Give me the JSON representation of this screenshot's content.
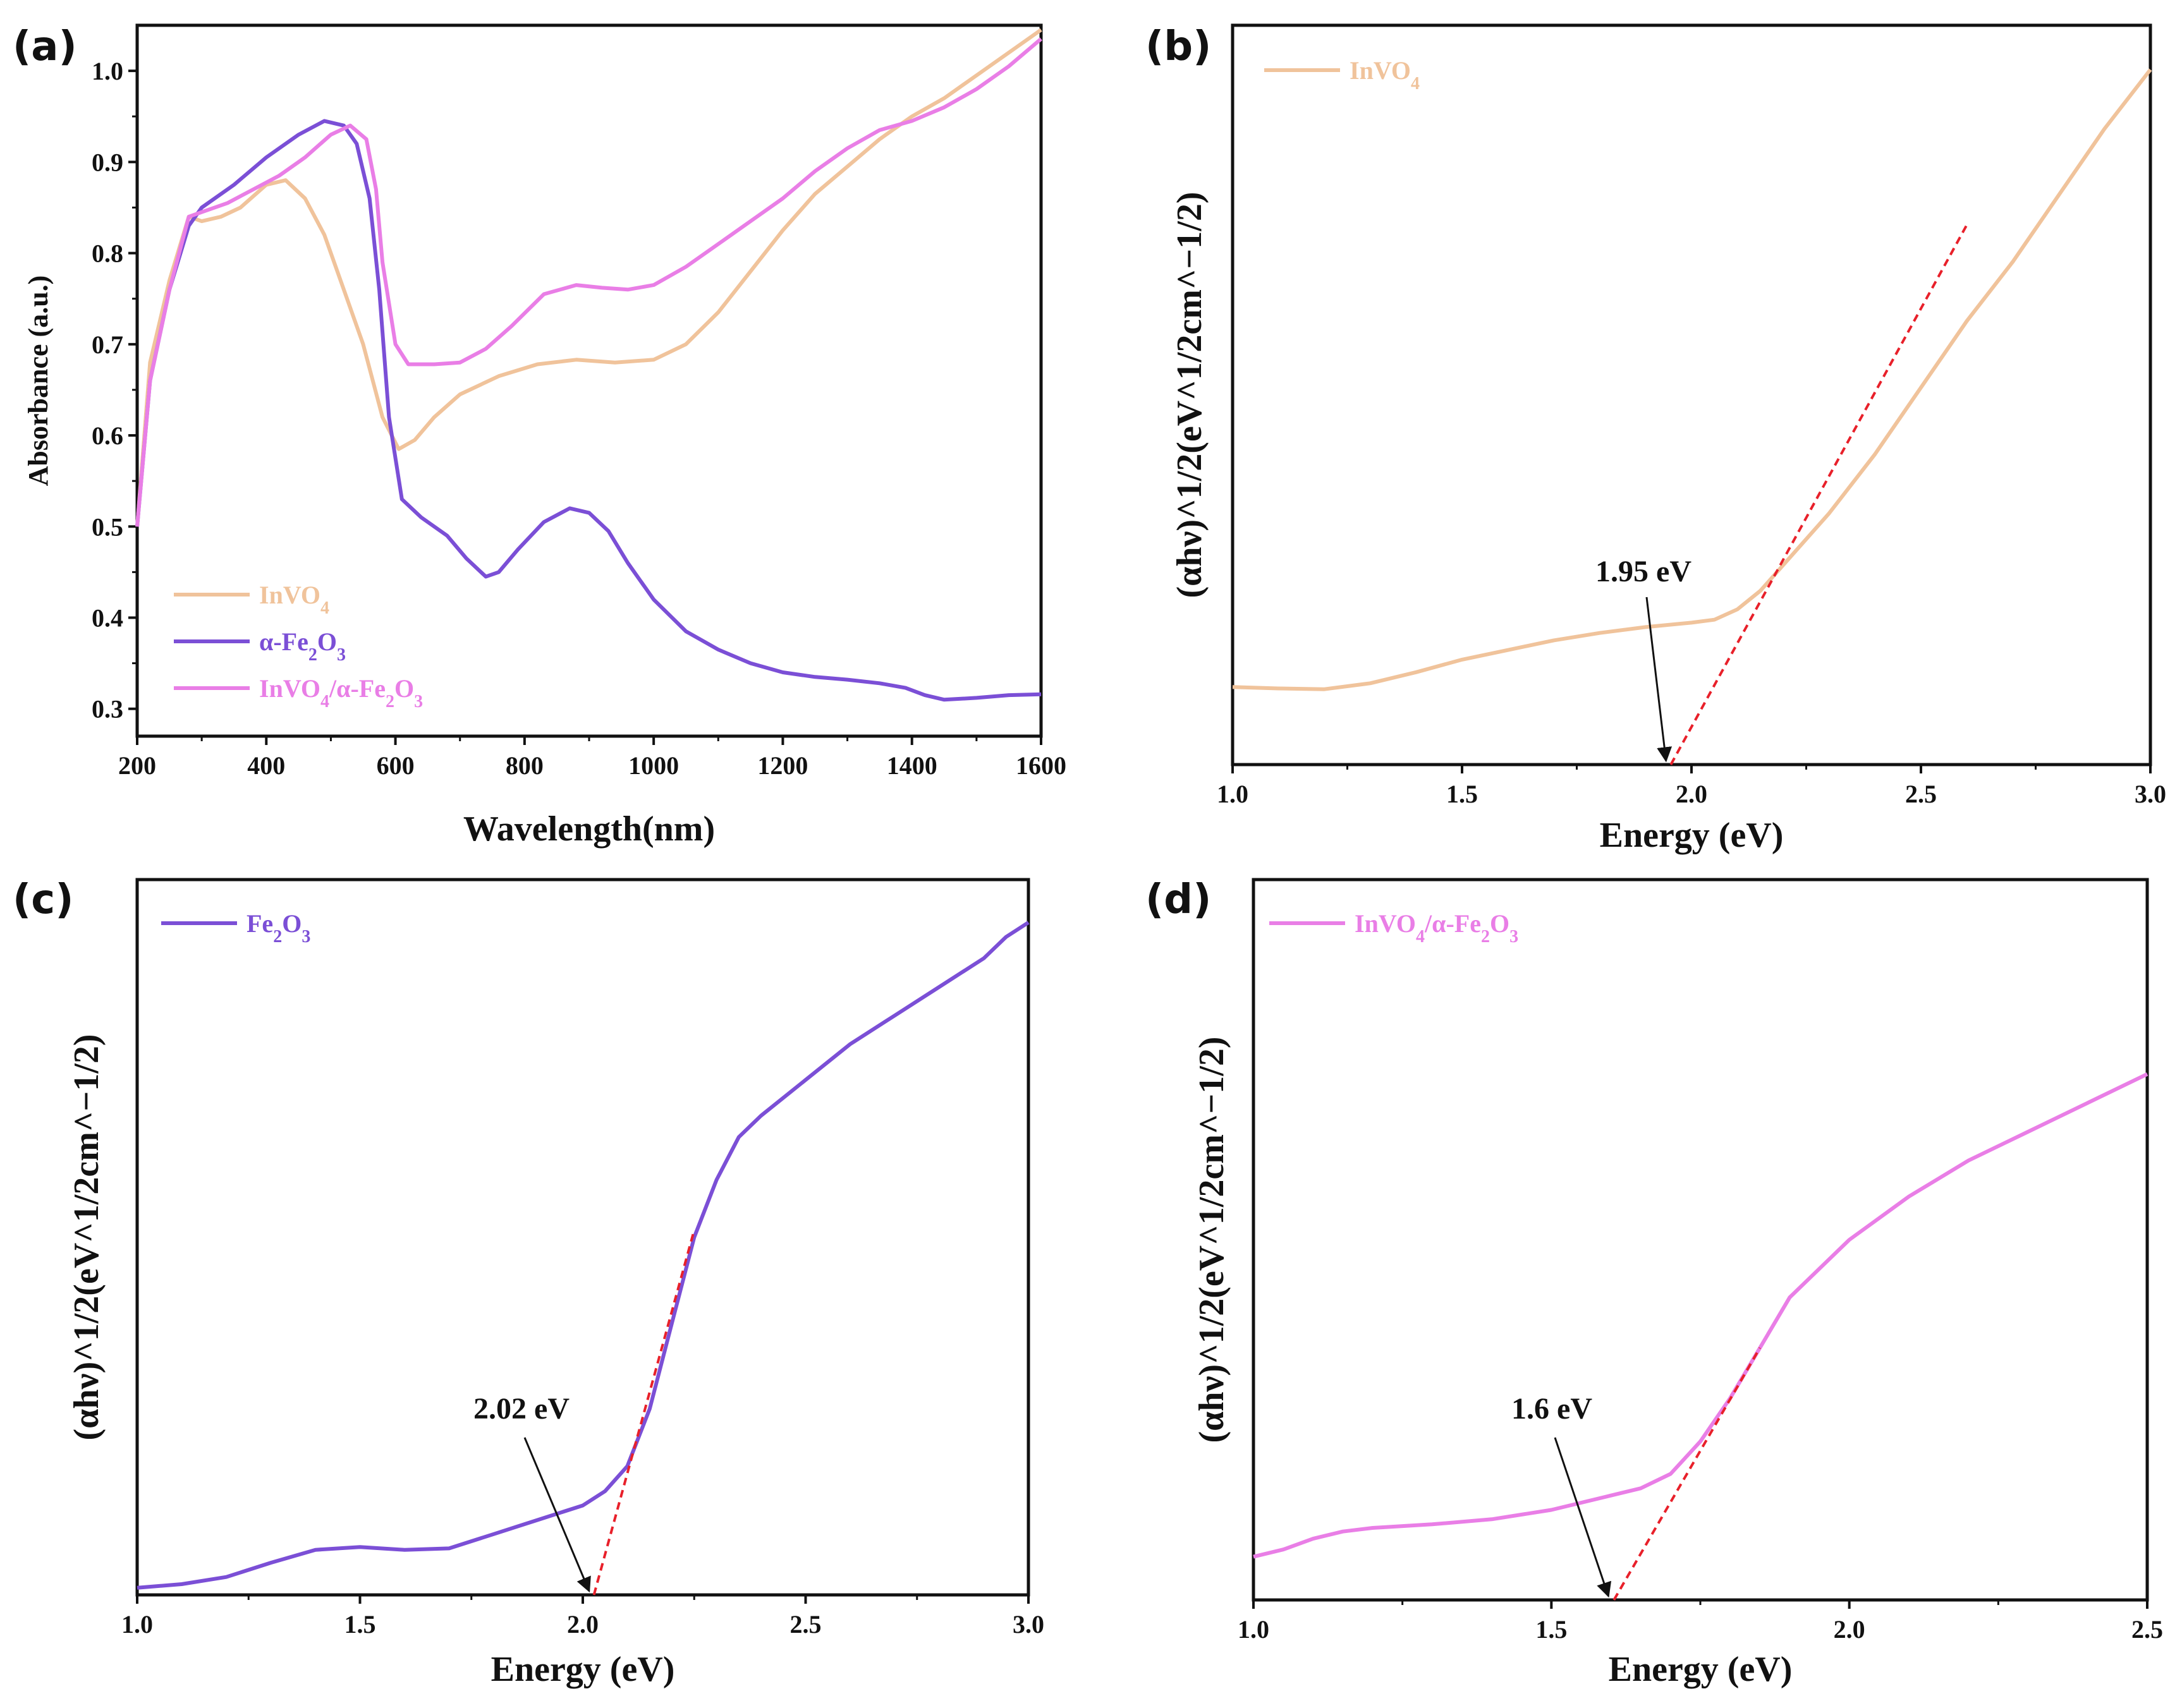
{
  "chart_data": [
    {
      "panel": "(a)",
      "type": "line",
      "title": "",
      "xlabel": "Wavelength(nm)",
      "ylabel": "Absorbance (a.u.)",
      "xlim": [
        200,
        1600
      ],
      "ylim": [
        0.27,
        1.05
      ],
      "xticks": [
        "200",
        "400",
        "600",
        "800",
        "1000",
        "1200",
        "1400",
        "1600"
      ],
      "yticks": [
        "0.3",
        "0.4",
        "0.5",
        "0.6",
        "0.7",
        "0.8",
        "0.9",
        "1.0"
      ],
      "legend_position": "lower-left",
      "series": [
        {
          "name": "InVO4",
          "label_main": "InVO",
          "label_sub": "4",
          "color": "#f0c39b",
          "points": [
            [
              200,
              0.5
            ],
            [
              220,
              0.68
            ],
            [
              250,
              0.77
            ],
            [
              280,
              0.84
            ],
            [
              300,
              0.835
            ],
            [
              330,
              0.84
            ],
            [
              360,
              0.85
            ],
            [
              400,
              0.875
            ],
            [
              430,
              0.88
            ],
            [
              460,
              0.86
            ],
            [
              490,
              0.82
            ],
            [
              520,
              0.76
            ],
            [
              550,
              0.7
            ],
            [
              580,
              0.62
            ],
            [
              605,
              0.585
            ],
            [
              630,
              0.595
            ],
            [
              660,
              0.62
            ],
            [
              700,
              0.645
            ],
            [
              760,
              0.665
            ],
            [
              820,
              0.678
            ],
            [
              880,
              0.683
            ],
            [
              940,
              0.68
            ],
            [
              1000,
              0.683
            ],
            [
              1050,
              0.7
            ],
            [
              1100,
              0.735
            ],
            [
              1150,
              0.78
            ],
            [
              1200,
              0.825
            ],
            [
              1250,
              0.865
            ],
            [
              1300,
              0.895
            ],
            [
              1350,
              0.925
            ],
            [
              1400,
              0.95
            ],
            [
              1450,
              0.97
            ],
            [
              1500,
              0.995
            ],
            [
              1550,
              1.02
            ],
            [
              1600,
              1.045
            ]
          ]
        },
        {
          "name": "α-Fe2O3",
          "label_main": "α-Fe",
          "label_sub": "2",
          "label_main2": "O",
          "label_sub2": "3",
          "color": "#7b4fd6",
          "points": [
            [
              200,
              0.5
            ],
            [
              220,
              0.66
            ],
            [
              250,
              0.76
            ],
            [
              280,
              0.83
            ],
            [
              300,
              0.85
            ],
            [
              350,
              0.875
            ],
            [
              400,
              0.905
            ],
            [
              450,
              0.93
            ],
            [
              490,
              0.945
            ],
            [
              520,
              0.94
            ],
            [
              540,
              0.92
            ],
            [
              560,
              0.86
            ],
            [
              575,
              0.76
            ],
            [
              590,
              0.62
            ],
            [
              610,
              0.53
            ],
            [
              640,
              0.51
            ],
            [
              680,
              0.49
            ],
            [
              710,
              0.465
            ],
            [
              740,
              0.445
            ],
            [
              760,
              0.45
            ],
            [
              790,
              0.475
            ],
            [
              830,
              0.505
            ],
            [
              870,
              0.52
            ],
            [
              900,
              0.515
            ],
            [
              930,
              0.495
            ],
            [
              960,
              0.46
            ],
            [
              1000,
              0.42
            ],
            [
              1050,
              0.385
            ],
            [
              1100,
              0.365
            ],
            [
              1150,
              0.35
            ],
            [
              1200,
              0.34
            ],
            [
              1250,
              0.335
            ],
            [
              1300,
              0.332
            ],
            [
              1350,
              0.328
            ],
            [
              1390,
              0.323
            ],
            [
              1420,
              0.315
            ],
            [
              1450,
              0.31
            ],
            [
              1500,
              0.312
            ],
            [
              1550,
              0.315
            ],
            [
              1600,
              0.316
            ]
          ]
        },
        {
          "name": "InVO4/α-Fe2O3",
          "label_main": "InVO",
          "label_sub": "4",
          "label_main2": "/α-Fe",
          "label_sub2": "2",
          "label_main3": "O",
          "label_sub3": "3",
          "color": "#e97ee6",
          "points": [
            [
              200,
              0.5
            ],
            [
              220,
              0.66
            ],
            [
              250,
              0.76
            ],
            [
              280,
              0.84
            ],
            [
              300,
              0.845
            ],
            [
              340,
              0.855
            ],
            [
              380,
              0.87
            ],
            [
              420,
              0.885
            ],
            [
              460,
              0.905
            ],
            [
              500,
              0.93
            ],
            [
              530,
              0.94
            ],
            [
              555,
              0.925
            ],
            [
              570,
              0.87
            ],
            [
              580,
              0.79
            ],
            [
              600,
              0.7
            ],
            [
              620,
              0.678
            ],
            [
              660,
              0.678
            ],
            [
              700,
              0.68
            ],
            [
              740,
              0.695
            ],
            [
              780,
              0.72
            ],
            [
              830,
              0.755
            ],
            [
              880,
              0.765
            ],
            [
              920,
              0.762
            ],
            [
              960,
              0.76
            ],
            [
              1000,
              0.765
            ],
            [
              1050,
              0.785
            ],
            [
              1100,
              0.81
            ],
            [
              1150,
              0.835
            ],
            [
              1200,
              0.86
            ],
            [
              1250,
              0.89
            ],
            [
              1300,
              0.915
            ],
            [
              1350,
              0.935
            ],
            [
              1400,
              0.945
            ],
            [
              1450,
              0.96
            ],
            [
              1500,
              0.98
            ],
            [
              1550,
              1.005
            ],
            [
              1600,
              1.035
            ]
          ]
        }
      ]
    },
    {
      "panel": "(b)",
      "type": "line",
      "xlabel": "Energy (eV)",
      "ylabel": "(αhν)^1/2(eV^1/2cm^−1/2)",
      "xlim": [
        1.0,
        3.0
      ],
      "ylim": [
        0,
        100
      ],
      "xticks": [
        "1.0",
        "1.5",
        "2.0",
        "2.5",
        "3.0"
      ],
      "legend_position": "top-left",
      "series": [
        {
          "name": "InVO4",
          "label_main": "InVO",
          "label_sub": "4",
          "color": "#f0c39b",
          "points": [
            [
              1.0,
              10.5
            ],
            [
              1.1,
              10.3
            ],
            [
              1.2,
              10.2
            ],
            [
              1.3,
              11
            ],
            [
              1.4,
              12.5
            ],
            [
              1.5,
              14.2
            ],
            [
              1.6,
              15.5
            ],
            [
              1.7,
              16.8
            ],
            [
              1.8,
              17.8
            ],
            [
              1.9,
              18.6
            ],
            [
              2.0,
              19.2
            ],
            [
              2.05,
              19.6
            ],
            [
              2.1,
              21
            ],
            [
              2.15,
              23.5
            ],
            [
              2.2,
              27
            ],
            [
              2.3,
              34
            ],
            [
              2.4,
              42
            ],
            [
              2.5,
              51
            ],
            [
              2.6,
              60
            ],
            [
              2.7,
              68
            ],
            [
              2.8,
              77
            ],
            [
              2.9,
              86
            ],
            [
              3.0,
              94
            ]
          ]
        }
      ],
      "tangent": [
        [
          1.955,
          0
        ],
        [
          2.6,
          73
        ]
      ],
      "annotation": "1.95 eV",
      "band_gap_ev": 1.95
    },
    {
      "panel": "(c)",
      "type": "line",
      "xlabel": "Energy (eV)",
      "ylabel": "(αhν)^1/2(eV^1/2cm^−1/2)",
      "xlim": [
        1.0,
        3.0
      ],
      "ylim": [
        0,
        100
      ],
      "xticks": [
        "1.0",
        "1.5",
        "2.0",
        "2.5",
        "3.0"
      ],
      "legend_position": "top-left",
      "series": [
        {
          "name": "Fe2O3",
          "label_main": "Fe",
          "label_sub": "2",
          "label_main2": "O",
          "label_sub2": "3",
          "color": "#7b4fd6",
          "points": [
            [
              1.0,
              1
            ],
            [
              1.1,
              1.5
            ],
            [
              1.2,
              2.5
            ],
            [
              1.3,
              4.5
            ],
            [
              1.4,
              6.3
            ],
            [
              1.5,
              6.7
            ],
            [
              1.6,
              6.3
            ],
            [
              1.7,
              6.5
            ],
            [
              1.8,
              8.5
            ],
            [
              1.9,
              10.5
            ],
            [
              2.0,
              12.5
            ],
            [
              2.05,
              14.5
            ],
            [
              2.1,
              18
            ],
            [
              2.15,
              26
            ],
            [
              2.2,
              38
            ],
            [
              2.25,
              50
            ],
            [
              2.3,
              58
            ],
            [
              2.35,
              64
            ],
            [
              2.4,
              67
            ],
            [
              2.5,
              72
            ],
            [
              2.6,
              77
            ],
            [
              2.7,
              81
            ],
            [
              2.8,
              85
            ],
            [
              2.9,
              89
            ],
            [
              2.95,
              92
            ],
            [
              3.0,
              94
            ]
          ]
        }
      ],
      "tangent": [
        [
          2.025,
          0
        ],
        [
          2.25,
          51
        ]
      ],
      "annotation": "2.02 eV",
      "band_gap_ev": 2.02
    },
    {
      "panel": "(d)",
      "type": "line",
      "xlabel": "Energy (eV)",
      "ylabel": "(αhν)^1/2(eV^1/2cm^−1/2)",
      "xlim": [
        1.0,
        2.5
      ],
      "ylim": [
        0,
        100
      ],
      "xticks": [
        "1.0",
        "1.5",
        "2.0",
        "2.5"
      ],
      "legend_position": "top-left",
      "series": [
        {
          "name": "InVO4/α-Fe2O3",
          "label_main": "InVO",
          "label_sub": "4",
          "label_main2": "/α-Fe",
          "label_sub2": "2",
          "label_main3": "O",
          "label_sub3": "3",
          "color": "#e97ee6",
          "points": [
            [
              1.0,
              6
            ],
            [
              1.05,
              7
            ],
            [
              1.1,
              8.5
            ],
            [
              1.15,
              9.5
            ],
            [
              1.2,
              10
            ],
            [
              1.3,
              10.5
            ],
            [
              1.4,
              11.2
            ],
            [
              1.5,
              12.5
            ],
            [
              1.6,
              14.5
            ],
            [
              1.65,
              15.5
            ],
            [
              1.7,
              17.5
            ],
            [
              1.75,
              22
            ],
            [
              1.8,
              28
            ],
            [
              1.85,
              35
            ],
            [
              1.9,
              42
            ],
            [
              1.95,
              46
            ],
            [
              2.0,
              50
            ],
            [
              2.1,
              56
            ],
            [
              2.2,
              61
            ],
            [
              2.3,
              65
            ],
            [
              2.4,
              69
            ],
            [
              2.5,
              73
            ]
          ]
        }
      ],
      "tangent": [
        [
          1.605,
          0
        ],
        [
          1.85,
          35
        ]
      ],
      "annotation": "1.6 eV",
      "band_gap_ev": 1.6
    }
  ]
}
